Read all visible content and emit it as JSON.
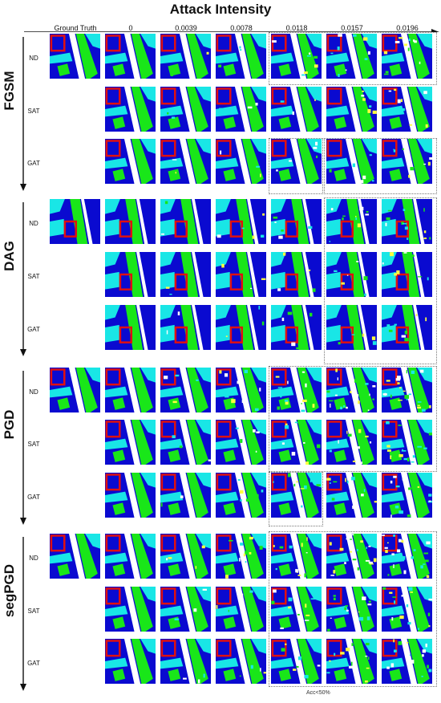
{
  "title": "Attack Intensity",
  "column_headers": [
    "Ground Truth",
    "0",
    "0.0039",
    "0.0078",
    "0.0118",
    "0.0157",
    "0.0196"
  ],
  "methods": [
    {
      "name": "FGSM",
      "rows": [
        "ND",
        "SAT",
        "GAT"
      ]
    },
    {
      "name": "DAG",
      "rows": [
        "ND",
        "SAT",
        "GAT"
      ]
    },
    {
      "name": "PGD",
      "rows": [
        "ND",
        "SAT",
        "GAT"
      ]
    },
    {
      "name": "segPGD",
      "rows": [
        "ND",
        "SAT",
        "GAT"
      ]
    }
  ],
  "annotation": "Acc<50%",
  "colors": {
    "background": "#0a0ad0",
    "vegetation": "#19e619",
    "low_vegetation": "#19e6e6",
    "road": "#ffffff",
    "clutter": "#ffff40",
    "highlight_box": "#e01010",
    "dotted_box": "#777777"
  }
}
